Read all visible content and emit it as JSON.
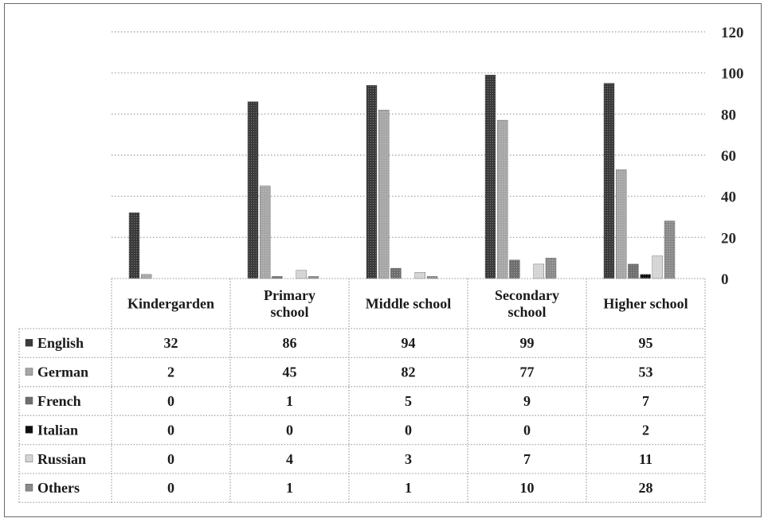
{
  "chart_data": {
    "type": "bar",
    "categories": [
      [
        "Kindergarden"
      ],
      [
        "Primary",
        "school"
      ],
      [
        "Middle school"
      ],
      [
        "Secondary",
        "school"
      ],
      [
        "Higher school"
      ]
    ],
    "series": [
      {
        "name": "English",
        "color": "#3a3a3a",
        "values": [
          32,
          86,
          94,
          99,
          95
        ]
      },
      {
        "name": "German",
        "color": "#a6a6a6",
        "values": [
          2,
          45,
          82,
          77,
          53
        ]
      },
      {
        "name": "French",
        "color": "#6e6e6e",
        "values": [
          0,
          1,
          5,
          9,
          7
        ]
      },
      {
        "name": "Italian",
        "color": "#0e0e0e",
        "values": [
          0,
          0,
          0,
          0,
          2
        ]
      },
      {
        "name": "Russian",
        "color": "#d4d4d4",
        "values": [
          0,
          4,
          3,
          7,
          11
        ]
      },
      {
        "name": "Others",
        "color": "#8a8a8a",
        "values": [
          0,
          1,
          1,
          10,
          28
        ]
      }
    ],
    "y_ticks": [
      "0",
      "20",
      "40",
      "60",
      "80",
      "100",
      "120"
    ],
    "ylim": [
      0,
      120
    ],
    "yaxis_side": "right",
    "grid": true,
    "legend": "data-table"
  }
}
